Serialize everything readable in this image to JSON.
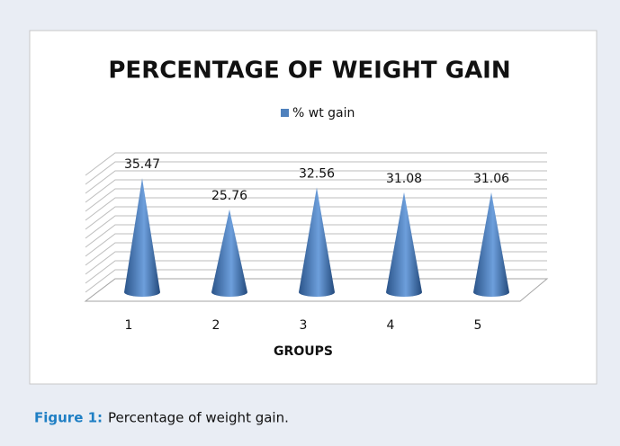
{
  "chart_data": {
    "type": "cone",
    "title": "PERCENTAGE OF WEIGHT GAIN",
    "x_label": "GROUPS",
    "categories": [
      "1",
      "2",
      "3",
      "4",
      "5"
    ],
    "series": [
      {
        "name": "% wt gain",
        "color": "#4f81bd",
        "values": [
          35.47,
          25.76,
          32.56,
          31.08,
          31.06
        ]
      }
    ],
    "ylim": [
      0,
      45
    ],
    "legend": "top"
  },
  "caption": {
    "label": "Figure 1:",
    "text": "Percentage of weight gain."
  }
}
